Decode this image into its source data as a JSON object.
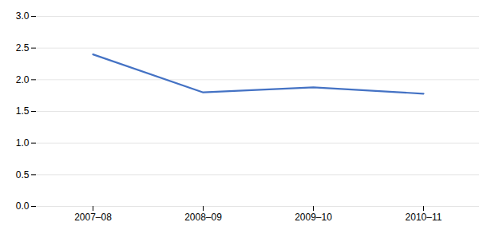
{
  "chart_data": {
    "type": "line",
    "categories": [
      "2007–08",
      "2008–09",
      "2009–10",
      "2010–11"
    ],
    "values": [
      2.4,
      1.8,
      1.88,
      1.78
    ],
    "color": "#4472c4",
    "ylim": [
      0.0,
      3.0
    ],
    "yticks": [
      {
        "value": 0.0,
        "label": "0.0"
      },
      {
        "value": 0.5,
        "label": "0.5"
      },
      {
        "value": 1.0,
        "label": "1.0"
      },
      {
        "value": 1.5,
        "label": "1.5"
      },
      {
        "value": 2.0,
        "label": "2.0"
      },
      {
        "value": 2.5,
        "label": "2.5"
      },
      {
        "value": 3.0,
        "label": "3.0"
      }
    ],
    "grid": true
  }
}
